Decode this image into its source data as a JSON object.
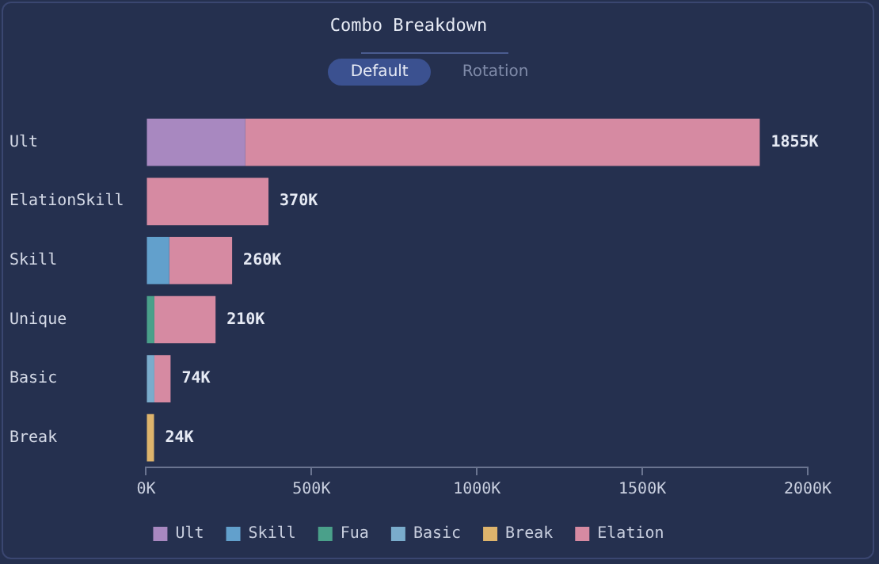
{
  "chart_data": {
    "type": "bar",
    "title": "Combo Breakdown",
    "orientation": "horizontal",
    "stacked": true,
    "annotations": [
      "Default",
      "Rotation"
    ],
    "categories": [
      "Ult",
      "ElationSkill",
      "Skill",
      "Unique",
      "Basic",
      "Break"
    ],
    "series": [
      {
        "name": "Ult",
        "color": "#a888c0",
        "values": [
          300,
          null,
          null,
          null,
          null,
          null
        ]
      },
      {
        "name": "Skill",
        "color": "#62a0cc",
        "values": [
          null,
          null,
          70,
          null,
          null,
          null
        ]
      },
      {
        "name": "Fua",
        "color": "#4aa08a",
        "values": [
          null,
          null,
          null,
          25,
          null,
          null
        ]
      },
      {
        "name": "Basic",
        "color": "#7aaccc",
        "values": [
          null,
          null,
          null,
          null,
          25,
          null
        ]
      },
      {
        "name": "Break",
        "color": "#deb46c",
        "values": [
          null,
          null,
          null,
          null,
          null,
          24
        ]
      },
      {
        "name": "Elation",
        "color": "#d68aa2",
        "values": [
          1555,
          370,
          190,
          185,
          49,
          null
        ]
      }
    ],
    "totals": [
      "1855K",
      "370K",
      "260K",
      "210K",
      "74K",
      "24K"
    ],
    "xlim": [
      0,
      2000
    ],
    "xticks": [
      {
        "value": 0,
        "label": "0K"
      },
      {
        "value": 500,
        "label": "500K"
      },
      {
        "value": 1000,
        "label": "1000K"
      },
      {
        "value": 1500,
        "label": "1500K"
      },
      {
        "value": 2000,
        "label": "2000K"
      }
    ],
    "grid": false,
    "legend": "bottom"
  }
}
